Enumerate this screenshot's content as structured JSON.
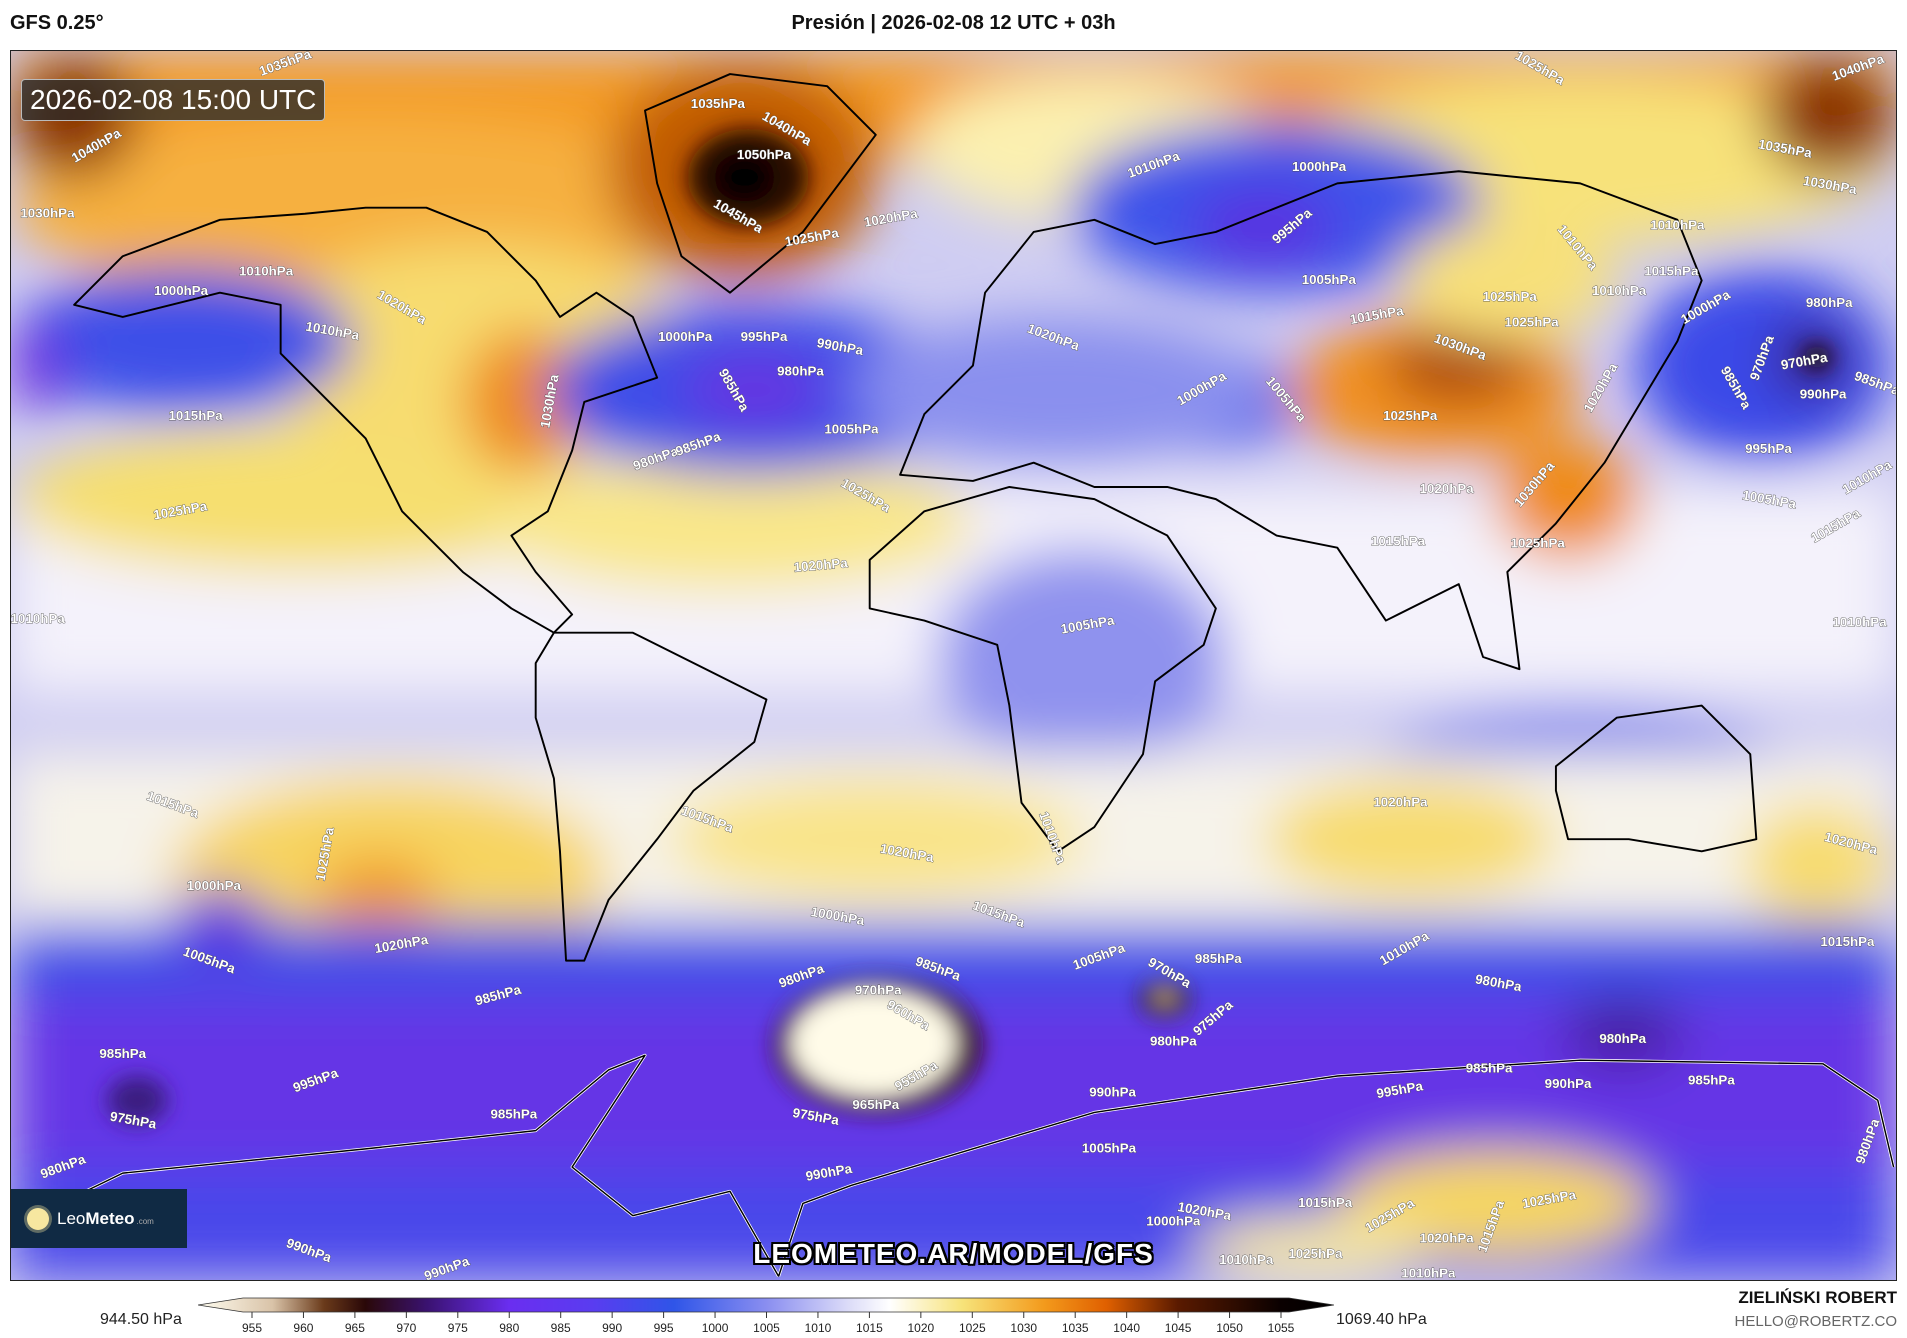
{
  "header": {
    "model": "GFS 0.25°",
    "title": "Presión | 2026-02-08 12 UTC + 03h"
  },
  "map": {
    "timestamp": "2026-02-08 15:00 UTC",
    "watermark": "LEOMETEO.AR/MODEL/GFS",
    "logo": {
      "brand_light": "Leo",
      "brand_bold": "Meteo",
      "suffix": ".com"
    },
    "isobar_labels": [
      "1035hPa",
      "1040hPa",
      "1030hPa",
      "1035hPa",
      "1040hPa",
      "1050hPa",
      "1045hPa",
      "1020hPa",
      "1025hPa",
      "1000hPa",
      "1010hPa",
      "1010hPa",
      "1020hPa",
      "1015hPa",
      "1025hPa",
      "1010hPa",
      "1030hPa",
      "1000hPa",
      "995hPa",
      "990hPa",
      "980hPa",
      "985hPa",
      "980hPa",
      "985hPa",
      "1005hPa",
      "1025hPa",
      "1020hPa",
      "1010hPa",
      "1000hPa",
      "995hPa",
      "1005hPa",
      "1015hPa",
      "1020hPa",
      "1000hPa",
      "1005hPa",
      "1030hPa",
      "1025hPa",
      "1020hPa",
      "1015hPa",
      "1025hPa",
      "1030hPa",
      "1025hPa",
      "1025hPa",
      "1010hPa",
      "1010hPa",
      "1010hPa",
      "1015hPa",
      "1000hPa",
      "980hPa",
      "970hPa",
      "970hPa",
      "985hPa",
      "990hPa",
      "985hPa",
      "1020hPa",
      "995hPa",
      "1005hPa",
      "1015hPa",
      "1010hPa",
      "1035hPa",
      "1030hPa",
      "1040hPa",
      "1025hPa",
      "1010hPa",
      "1005hPa",
      "1010hPa",
      "1015hPa",
      "1025hPa",
      "1015hPa",
      "1020hPa",
      "1020hPa",
      "1020hPa",
      "1015hPa",
      "1000hPa",
      "1005hPa",
      "1020hPa",
      "1000hPa",
      "1015hPa",
      "985hPa",
      "980hPa",
      "970hPa",
      "985hPa",
      "960hPa",
      "955hPa",
      "965hPa",
      "975hPa",
      "1005hPa",
      "970hPa",
      "985hPa",
      "975hPa",
      "980hPa",
      "1010hPa",
      "980hPa",
      "980hPa",
      "985hPa",
      "995hPa",
      "990hPa",
      "985hPa",
      "980hPa",
      "985hPa",
      "995hPa",
      "975hPa",
      "985hPa",
      "990hPa",
      "980hPa",
      "990hPa",
      "1005hPa",
      "1020hPa",
      "1015hPa",
      "1025hPa",
      "1020hPa",
      "1015hPa",
      "1025hPa",
      "1000hPa",
      "1010hPa",
      "1025hPa",
      "990hPa",
      "990hPa",
      "1010hPa"
    ]
  },
  "colorbar": {
    "unit": "hPa",
    "min_label": "944.50 hPa",
    "max_label": "1069.40 hPa",
    "min": 944.5,
    "max": 1069.4,
    "ticks": [
      "955",
      "960",
      "965",
      "970",
      "975",
      "980",
      "985",
      "990",
      "995",
      "1000",
      "1005",
      "1010",
      "1015",
      "1020",
      "1025",
      "1030",
      "1035",
      "1040",
      "1045",
      "1050",
      "1055"
    ],
    "stops": [
      {
        "v": 944.5,
        "color": "#fffdf0"
      },
      {
        "v": 957,
        "color": "#d9c3a8"
      },
      {
        "v": 962,
        "color": "#6a3a1a"
      },
      {
        "v": 966,
        "color": "#2a0808"
      },
      {
        "v": 972,
        "color": "#3a1270"
      },
      {
        "v": 980,
        "color": "#6a2ef0"
      },
      {
        "v": 988,
        "color": "#5a3cf0"
      },
      {
        "v": 996,
        "color": "#2f55e8"
      },
      {
        "v": 1005,
        "color": "#8a8ef0"
      },
      {
        "v": 1013,
        "color": "#dcdcf8"
      },
      {
        "v": 1017,
        "color": "#ffffff"
      },
      {
        "v": 1024,
        "color": "#f7e37a"
      },
      {
        "v": 1032,
        "color": "#f39a1c"
      },
      {
        "v": 1038,
        "color": "#e06000"
      },
      {
        "v": 1045,
        "color": "#5a1a00"
      },
      {
        "v": 1055,
        "color": "#0a0000"
      },
      {
        "v": 1069.4,
        "color": "#000000"
      }
    ]
  },
  "credits": {
    "author": "ZIELIŃSKI ROBERT",
    "email": "HELLO@ROBERTZ.CO"
  }
}
